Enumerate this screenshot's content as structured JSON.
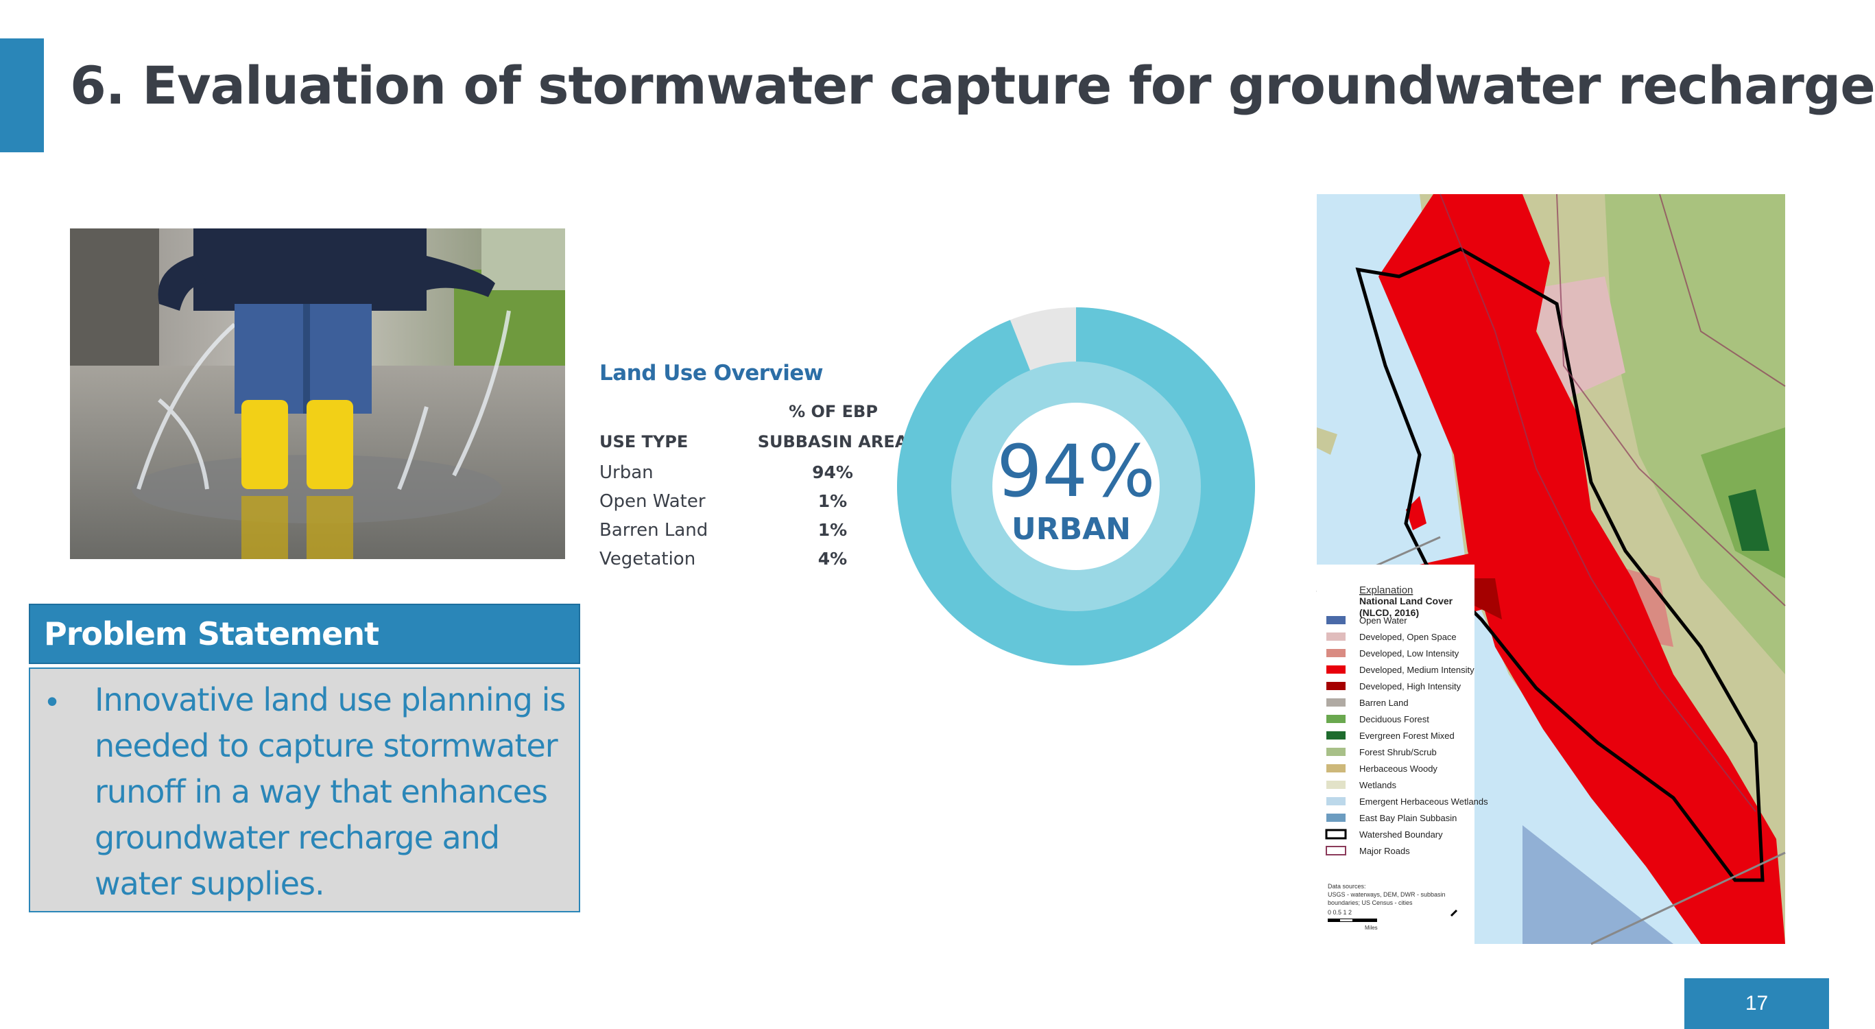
{
  "slide": {
    "title": "6.  Evaluation of stormwater capture for groundwater recharge",
    "page_number": "17",
    "accent_color": "#2a86b8"
  },
  "photo": {
    "icon": "child-splashing-puddle-photo"
  },
  "problem_statement": {
    "header": "Problem Statement",
    "bullet": "•",
    "text": "Innovative land use planning is needed to capture stormwater runoff in a way that enhances groundwater recharge and water supplies."
  },
  "land_use": {
    "title": "Land Use Overview",
    "col1_header": "USE TYPE",
    "col2_header_line1": "% OF EBP",
    "col2_header_line2": "SUBBASIN AREA",
    "rows": [
      {
        "type": "Urban",
        "pct": "94%"
      },
      {
        "type": "Open Water",
        "pct": "1%"
      },
      {
        "type": "Barren Land",
        "pct": "1%"
      },
      {
        "type": "Vegetation",
        "pct": "4%"
      }
    ]
  },
  "donut": {
    "value_label": "94%",
    "category_label": "URBAN",
    "fraction": 0.94,
    "colors": {
      "main": "#64c6d9",
      "inner": "#9ad8e5",
      "remainder": "#e6e6e6",
      "value_text": "#2e6da3"
    }
  },
  "map": {
    "legend": {
      "heading": "Explanation",
      "title_line1": "National Land Cover",
      "title_line2": "(NLCD, 2016)",
      "items": [
        {
          "label": "Open Water",
          "color": "#4a6aa8"
        },
        {
          "label": "Developed, Open Space",
          "color": "#e0bcbc"
        },
        {
          "label": "Developed, Low Intensity",
          "color": "#d98b82"
        },
        {
          "label": "Developed, Medium Intensity",
          "color": "#e8000c"
        },
        {
          "label": "Developed, High Intensity",
          "color": "#a50000"
        },
        {
          "label": "Barren Land",
          "color": "#b0aaa3"
        },
        {
          "label": "Deciduous Forest",
          "color": "#6aa84f"
        },
        {
          "label": "Evergreen Forest Mixed",
          "color": "#1e6b2e"
        },
        {
          "label": "Forest Shrub/Scrub",
          "color": "#a8c088"
        },
        {
          "label": "Herbaceous Woody",
          "color": "#cdb87a"
        },
        {
          "label": "Wetlands",
          "color": "#e2e2c8"
        },
        {
          "label": "Emergent Herbaceous Wetlands",
          "color": "#bcd8ea"
        },
        {
          "label": "East Bay Plain Subbasin",
          "color": "#6c9cc0"
        },
        {
          "label": "Watershed Boundary",
          "color": "#000000"
        },
        {
          "label": "Major Roads",
          "color": "#8b3a5a"
        }
      ],
      "sources_line1": "Data sources:",
      "sources_line2": "USGS - waterways, DEM, DWR - subbasin",
      "sources_line3": "boundaries; US Census - cities",
      "scale": "0   0.5   1        2",
      "scale_unit": "Miles"
    }
  }
}
